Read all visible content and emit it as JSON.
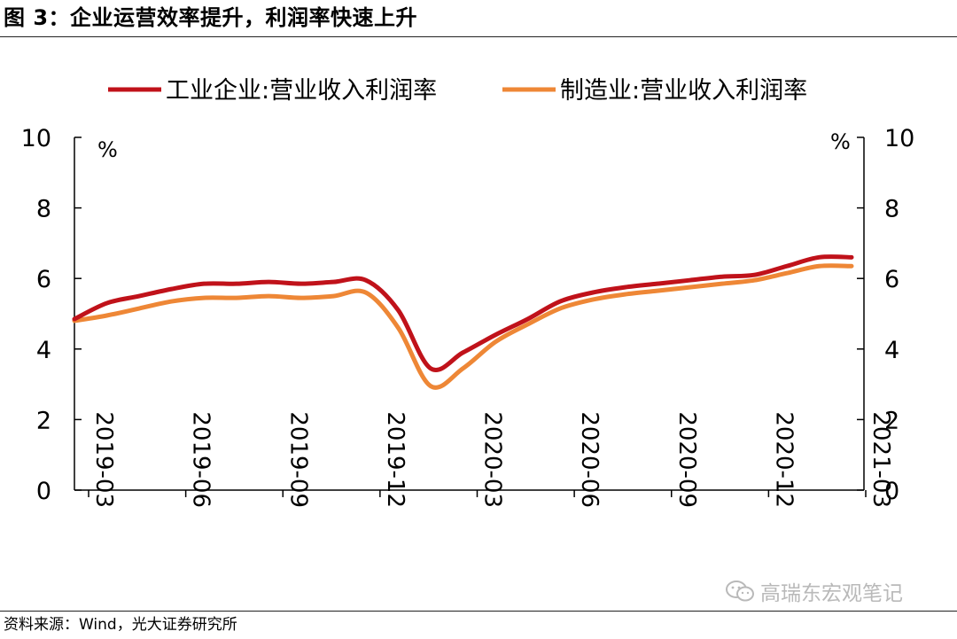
{
  "header": {
    "title": "图 3：企业运营效率提升，利润率快速上升"
  },
  "footer": {
    "source": "资料来源：Wind，光大证券研究所"
  },
  "watermark": {
    "text": "高瑞东宏观笔记",
    "icon": "wechat-icon"
  },
  "colors": {
    "series1": "#C0121A",
    "series2": "#EE8736",
    "axis": "#000000"
  },
  "chart_data": {
    "type": "line",
    "title": "图 3：企业运营效率提升，利润率快速上升",
    "y_unit_left": "%",
    "y_unit_right": "%",
    "ylim": [
      0,
      10
    ],
    "yticks": [
      0,
      2,
      4,
      6,
      8,
      10
    ],
    "ytick_labels": [
      "0",
      "2",
      "4",
      "6",
      "8",
      "10"
    ],
    "xlim": [
      "2019-03",
      "2021-03"
    ],
    "xtick_labels": [
      "2019-03",
      "2019-06",
      "2019-09",
      "2019-12",
      "2020-03",
      "2020-06",
      "2020-09",
      "2020-12",
      "2021-03"
    ],
    "grid": false,
    "legend_position": "top",
    "x": [
      "2019-03",
      "2019-04",
      "2019-05",
      "2019-06",
      "2019-07",
      "2019-08",
      "2019-09",
      "2019-10",
      "2019-11",
      "2019-12",
      "2020-01",
      "2020-02",
      "2020-03",
      "2020-04",
      "2020-05",
      "2020-06",
      "2020-07",
      "2020-08",
      "2020-09",
      "2020-10",
      "2020-11",
      "2020-12",
      "2021-01",
      "2021-02",
      "2021-03"
    ],
    "series": [
      {
        "name": "工业企业:营业收入利润率",
        "values": [
          4.85,
          5.3,
          5.5,
          5.7,
          5.85,
          5.85,
          5.9,
          5.85,
          5.9,
          5.95,
          5.1,
          3.45,
          3.9,
          4.4,
          4.85,
          5.35,
          5.6,
          5.75,
          5.85,
          5.95,
          6.05,
          6.1,
          6.35,
          6.6,
          6.6
        ]
      },
      {
        "name": "制造业:营业收入利润率",
        "values": [
          4.8,
          4.95,
          5.15,
          5.35,
          5.45,
          5.45,
          5.5,
          5.45,
          5.5,
          5.6,
          4.6,
          2.95,
          3.45,
          4.2,
          4.7,
          5.15,
          5.4,
          5.55,
          5.65,
          5.75,
          5.85,
          5.95,
          6.15,
          6.35,
          6.35
        ]
      }
    ]
  }
}
